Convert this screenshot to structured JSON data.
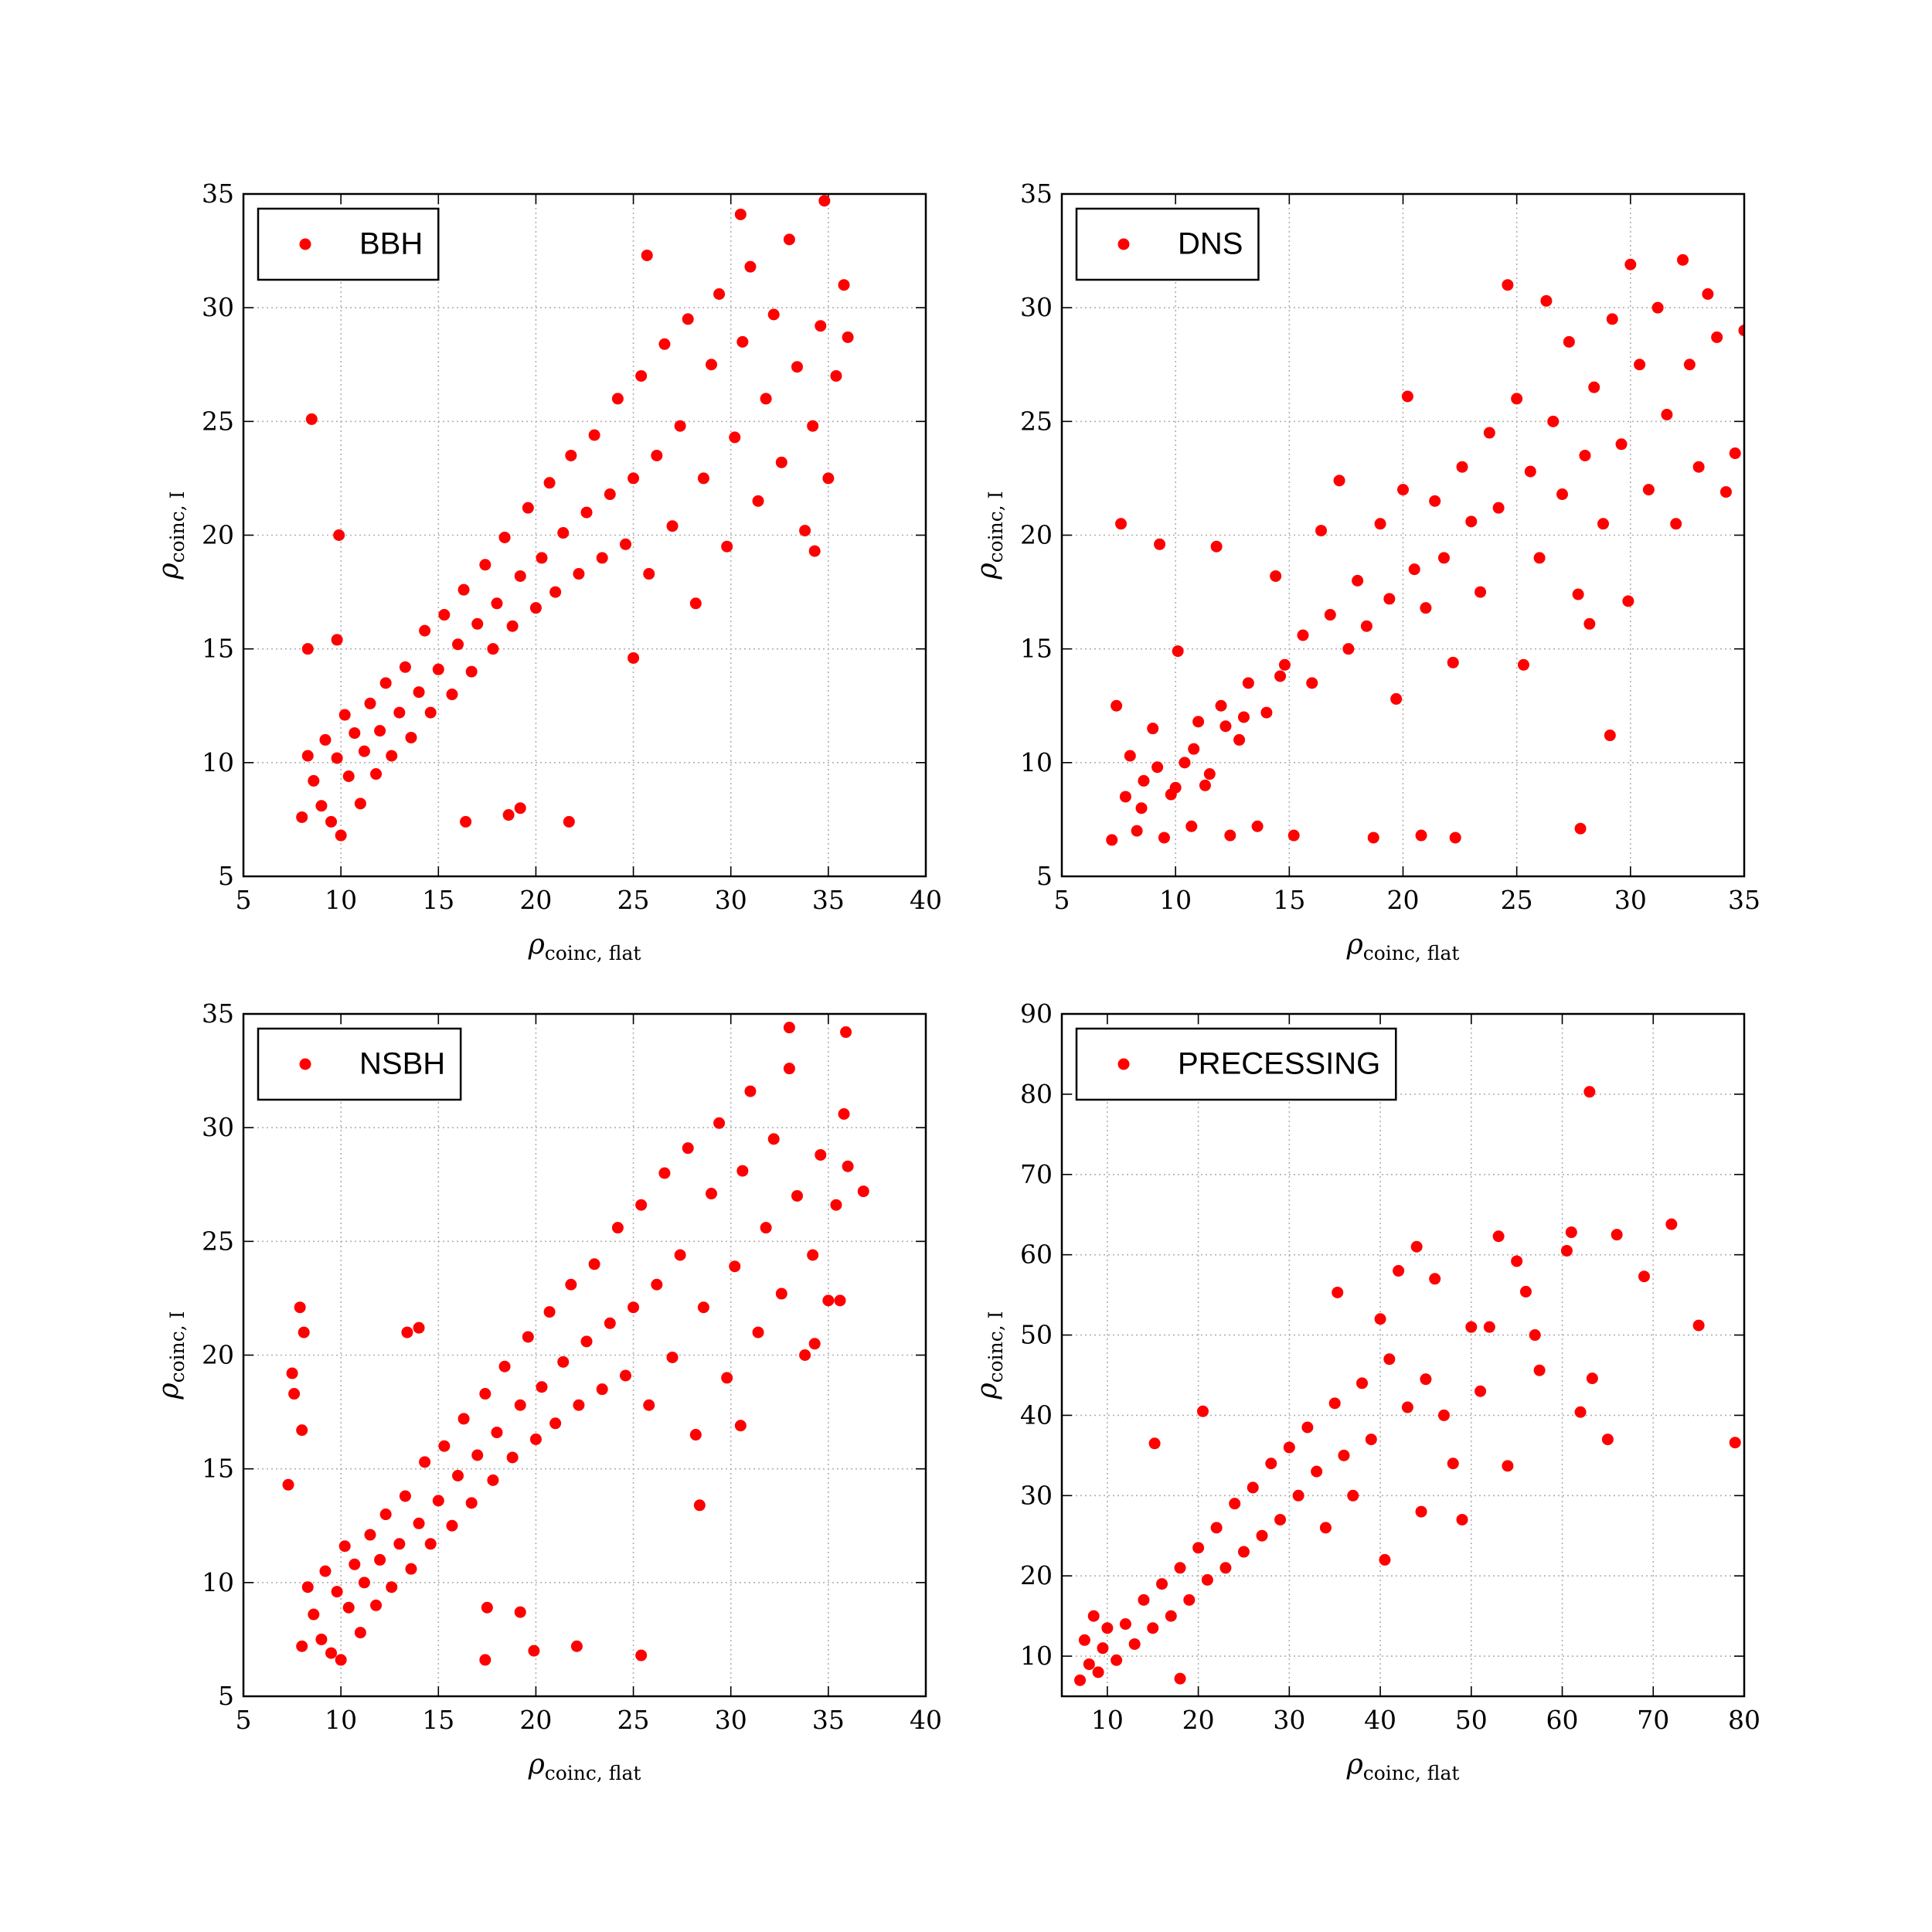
{
  "chart_data": [
    {
      "type": "scatter",
      "xlabel": "ρ",
      "xlabel_sub": "coinc, flat",
      "ylabel": "ρ",
      "ylabel_sub": "coinc, I",
      "legend": "upper left",
      "grid": true,
      "xlim": [
        5,
        40
      ],
      "xticks": [
        5,
        10,
        15,
        20,
        25,
        30,
        35,
        40
      ],
      "ylim": [
        5,
        35
      ],
      "yticks": [
        5,
        10,
        15,
        20,
        25,
        30,
        35
      ],
      "series": [
        {
          "name": "BBH",
          "color": "#ff0000",
          "x": [
            8,
            8.3,
            8.6,
            9,
            9.2,
            9.5,
            9.8,
            10,
            10.2,
            10.4,
            10.7,
            11,
            11.2,
            11.5,
            11.8,
            12,
            12.3,
            12.6,
            13,
            13.3,
            13.6,
            14,
            14.3,
            14.6,
            15,
            15.3,
            15.7,
            16,
            16.3,
            16.7,
            17,
            17.4,
            17.8,
            18,
            18.4,
            18.8,
            19.2,
            19.6,
            20,
            20.3,
            20.7,
            21,
            21.4,
            21.8,
            22.2,
            22.6,
            23,
            23.4,
            23.8,
            24.2,
            24.6,
            25,
            25.4,
            25.8,
            26.2,
            26.6,
            27,
            27.4,
            27.8,
            28.2,
            28.6,
            29,
            29.4,
            29.8,
            30.2,
            30.6,
            31,
            31.4,
            31.8,
            32.2,
            32.6,
            33,
            33.4,
            33.8,
            34.2,
            34.6,
            35,
            35.4,
            35.8,
            34.3,
            36,
            8.5,
            9.9,
            8.3,
            9.8,
            16.4,
            18.6,
            19.2,
            21.7,
            25,
            34.8,
            30.5,
            25.7
          ],
          "values": [
            7.6,
            10.3,
            9.2,
            8.1,
            11,
            7.4,
            10.2,
            6.8,
            12.1,
            9.4,
            11.3,
            8.2,
            10.5,
            12.6,
            9.5,
            11.4,
            13.5,
            10.3,
            12.2,
            14.2,
            11.1,
            13.1,
            15.8,
            12.2,
            14.1,
            16.5,
            13,
            15.2,
            17.6,
            14,
            16.1,
            18.7,
            15,
            17,
            19.9,
            16,
            18.2,
            21.2,
            16.8,
            19,
            22.3,
            17.5,
            20.1,
            23.5,
            18.3,
            21,
            24.4,
            19,
            21.8,
            26,
            19.6,
            22.5,
            27,
            18.3,
            23.5,
            28.4,
            20.4,
            24.8,
            29.5,
            17,
            22.5,
            27.5,
            30.6,
            19.5,
            24.3,
            28.5,
            31.8,
            21.5,
            26,
            29.7,
            23.2,
            33,
            27.4,
            20.2,
            24.8,
            29.2,
            22.5,
            27,
            31,
            19.3,
            28.7,
            25.1,
            20,
            15,
            15.4,
            7.4,
            7.7,
            8,
            7.4,
            14.6,
            34.7,
            34.1,
            32.3
          ]
        }
      ]
    },
    {
      "type": "scatter",
      "xlabel": "ρ",
      "xlabel_sub": "coinc, flat",
      "ylabel": "ρ",
      "ylabel_sub": "coinc, I",
      "legend": "upper left",
      "grid": true,
      "xlim": [
        5,
        35
      ],
      "xticks": [
        5,
        10,
        15,
        20,
        25,
        30,
        35
      ],
      "ylim": [
        5,
        35
      ],
      "yticks": [
        5,
        10,
        15,
        20,
        25,
        30,
        35
      ],
      "series": [
        {
          "name": "DNS",
          "color": "#ff0000",
          "x": [
            7.2,
            7.4,
            7.6,
            7.8,
            8,
            8.3,
            8.6,
            9,
            9.3,
            9.5,
            9.8,
            10.1,
            10.4,
            10.7,
            11,
            11.5,
            11.8,
            12,
            12.4,
            12.8,
            13.2,
            13.6,
            14,
            14.4,
            14.8,
            15.2,
            15.6,
            16,
            16.4,
            16.8,
            17.2,
            17.6,
            18,
            18.4,
            18.7,
            19,
            19.4,
            19.7,
            20,
            20.2,
            20.5,
            20.8,
            21,
            21.4,
            21.8,
            22.2,
            22.3,
            22.6,
            23,
            23.4,
            23.8,
            24.2,
            24.6,
            25,
            25.3,
            25.6,
            26,
            26.3,
            26.6,
            27,
            27.3,
            27.7,
            27.8,
            28,
            28.2,
            28.4,
            28.8,
            29.1,
            29.2,
            29.6,
            29.9,
            30,
            30.4,
            30.8,
            31.2,
            31.6,
            32,
            32.3,
            32.6,
            33,
            33.4,
            33.8,
            34.2,
            34.6,
            35,
            8.5,
            9.2,
            10,
            10.8,
            11.3,
            12.2,
            13,
            14.6
          ],
          "values": [
            6.6,
            12.5,
            20.5,
            8.5,
            10.3,
            7,
            9.2,
            11.5,
            19.6,
            6.7,
            8.6,
            14.9,
            10,
            7.2,
            11.8,
            9.5,
            19.5,
            12.5,
            6.8,
            11,
            13.5,
            7.2,
            12.2,
            18.2,
            14.3,
            6.8,
            15.6,
            13.5,
            20.2,
            16.5,
            22.4,
            15,
            18,
            16,
            6.7,
            20.5,
            17.2,
            12.8,
            22,
            26.1,
            18.5,
            6.8,
            16.8,
            21.5,
            19,
            14.4,
            6.7,
            23,
            20.6,
            17.5,
            24.5,
            21.2,
            31,
            26,
            14.3,
            22.8,
            19,
            30.3,
            25,
            21.8,
            28.5,
            17.4,
            7.1,
            23.5,
            16.1,
            26.5,
            20.5,
            11.2,
            29.5,
            24,
            17.1,
            31.9,
            27.5,
            22,
            30,
            25.3,
            20.5,
            32.1,
            27.5,
            23,
            30.6,
            28.7,
            21.9,
            23.6,
            29,
            8,
            9.8,
            8.9,
            10.6,
            9,
            11.6,
            12,
            13.8
          ]
        }
      ]
    },
    {
      "type": "scatter",
      "xlabel": "ρ",
      "xlabel_sub": "coinc, flat",
      "ylabel": "ρ",
      "ylabel_sub": "coinc, I",
      "legend": "upper left",
      "grid": true,
      "xlim": [
        5,
        40
      ],
      "xticks": [
        5,
        10,
        15,
        20,
        25,
        30,
        35,
        40
      ],
      "ylim": [
        5,
        35
      ],
      "yticks": [
        5,
        10,
        15,
        20,
        25,
        30,
        35
      ],
      "series": [
        {
          "name": "NSBH",
          "color": "#ff0000",
          "x": [
            8,
            8.3,
            8.6,
            9,
            9.2,
            9.5,
            9.8,
            10,
            10.2,
            10.4,
            10.7,
            11,
            11.2,
            11.5,
            11.8,
            12,
            12.3,
            12.6,
            13,
            13.3,
            13.6,
            14,
            14.3,
            14.6,
            15,
            15.3,
            15.7,
            16,
            16.3,
            16.7,
            17,
            17.4,
            17.8,
            18,
            18.4,
            18.8,
            19.2,
            19.6,
            20,
            20.3,
            20.7,
            21,
            21.4,
            21.8,
            22.2,
            22.6,
            23,
            23.4,
            23.8,
            24.2,
            24.6,
            25,
            25.4,
            25.8,
            26.2,
            26.6,
            27,
            27.4,
            27.8,
            28.2,
            28.6,
            29,
            29.4,
            29.8,
            30.2,
            30.6,
            31,
            31.4,
            31.8,
            32.2,
            32.6,
            33,
            33.4,
            33.8,
            34.2,
            34.6,
            35,
            35.4,
            35.8,
            34.3,
            36,
            7.3,
            7.5,
            7.6,
            7.9,
            8.1,
            8,
            13.4,
            14,
            17.4,
            17.5,
            19.2,
            19.9,
            22.1,
            25.4,
            28.4,
            30.5,
            33,
            35.9,
            36.8,
            35.6
          ],
          "values": [
            7.2,
            9.8,
            8.6,
            7.5,
            10.5,
            6.9,
            9.6,
            6.6,
            11.6,
            8.9,
            10.8,
            7.8,
            10,
            12.1,
            9,
            11,
            13,
            9.8,
            11.7,
            13.8,
            10.6,
            12.6,
            15.3,
            11.7,
            13.6,
            16,
            12.5,
            14.7,
            17.2,
            13.5,
            15.6,
            18.3,
            14.5,
            16.6,
            19.5,
            15.5,
            17.8,
            20.8,
            16.3,
            18.6,
            21.9,
            17,
            19.7,
            23.1,
            17.8,
            20.6,
            24,
            18.5,
            21.4,
            25.6,
            19.1,
            22.1,
            26.6,
            17.8,
            23.1,
            28,
            19.9,
            24.4,
            29.1,
            16.5,
            22.1,
            27.1,
            30.2,
            19,
            23.9,
            28.1,
            31.6,
            21,
            25.6,
            29.5,
            22.7,
            32.6,
            27,
            20,
            24.4,
            28.8,
            22.4,
            26.6,
            30.6,
            20.5,
            28.3,
            14.3,
            19.2,
            18.3,
            22.1,
            21,
            16.7,
            21,
            21.2,
            6.6,
            8.9,
            8.7,
            7,
            7.2,
            6.8,
            13.4,
            16.9,
            34.4,
            34.2,
            27.2,
            22.4
          ]
        }
      ]
    },
    {
      "type": "scatter",
      "xlabel": "ρ",
      "xlabel_sub": "coinc, flat",
      "ylabel": "ρ",
      "ylabel_sub": "coinc, I",
      "legend": "upper left",
      "grid": true,
      "xlim": [
        5,
        80
      ],
      "xticks": [
        10,
        20,
        30,
        40,
        50,
        60,
        70,
        80
      ],
      "ylim": [
        5,
        90
      ],
      "yticks": [
        10,
        20,
        30,
        40,
        50,
        60,
        70,
        80,
        90
      ],
      "series": [
        {
          "name": "PRECESSING",
          "color": "#ff0000",
          "x": [
            7,
            7.5,
            8,
            8.5,
            9,
            9.5,
            10,
            11,
            12,
            13,
            14,
            15,
            15.2,
            16,
            17,
            18,
            18,
            19,
            20,
            20.5,
            21,
            22,
            23,
            24,
            25,
            26,
            27,
            28,
            29,
            30,
            31,
            32,
            33,
            34,
            35,
            35.3,
            36,
            37,
            38,
            39,
            40,
            40.5,
            41,
            42,
            43,
            44,
            44.5,
            45,
            46,
            47,
            48,
            49,
            50,
            51,
            52,
            53,
            54,
            55,
            56,
            57,
            57.5,
            60.5,
            61,
            62,
            63,
            63.3,
            65,
            66,
            69,
            72,
            75,
            79
          ],
          "values": [
            7,
            12,
            9,
            15,
            8,
            11,
            13.5,
            9.5,
            14,
            11.5,
            17,
            13.5,
            36.5,
            19,
            15,
            7.2,
            21,
            17,
            23.5,
            40.5,
            19.5,
            26,
            21,
            29,
            23,
            31,
            25,
            34,
            27,
            36,
            30,
            38.5,
            33,
            26,
            41.5,
            55.3,
            35,
            30,
            44,
            37,
            52,
            22,
            47,
            58,
            41,
            61,
            28,
            44.5,
            57,
            40,
            34,
            27,
            51,
            43,
            51,
            62.3,
            33.7,
            59.2,
            55.4,
            50,
            45.6,
            60.5,
            62.8,
            40.4,
            80.3,
            44.6,
            37,
            62.5,
            57.3,
            63.8,
            51.2,
            36.6
          ]
        }
      ]
    }
  ]
}
